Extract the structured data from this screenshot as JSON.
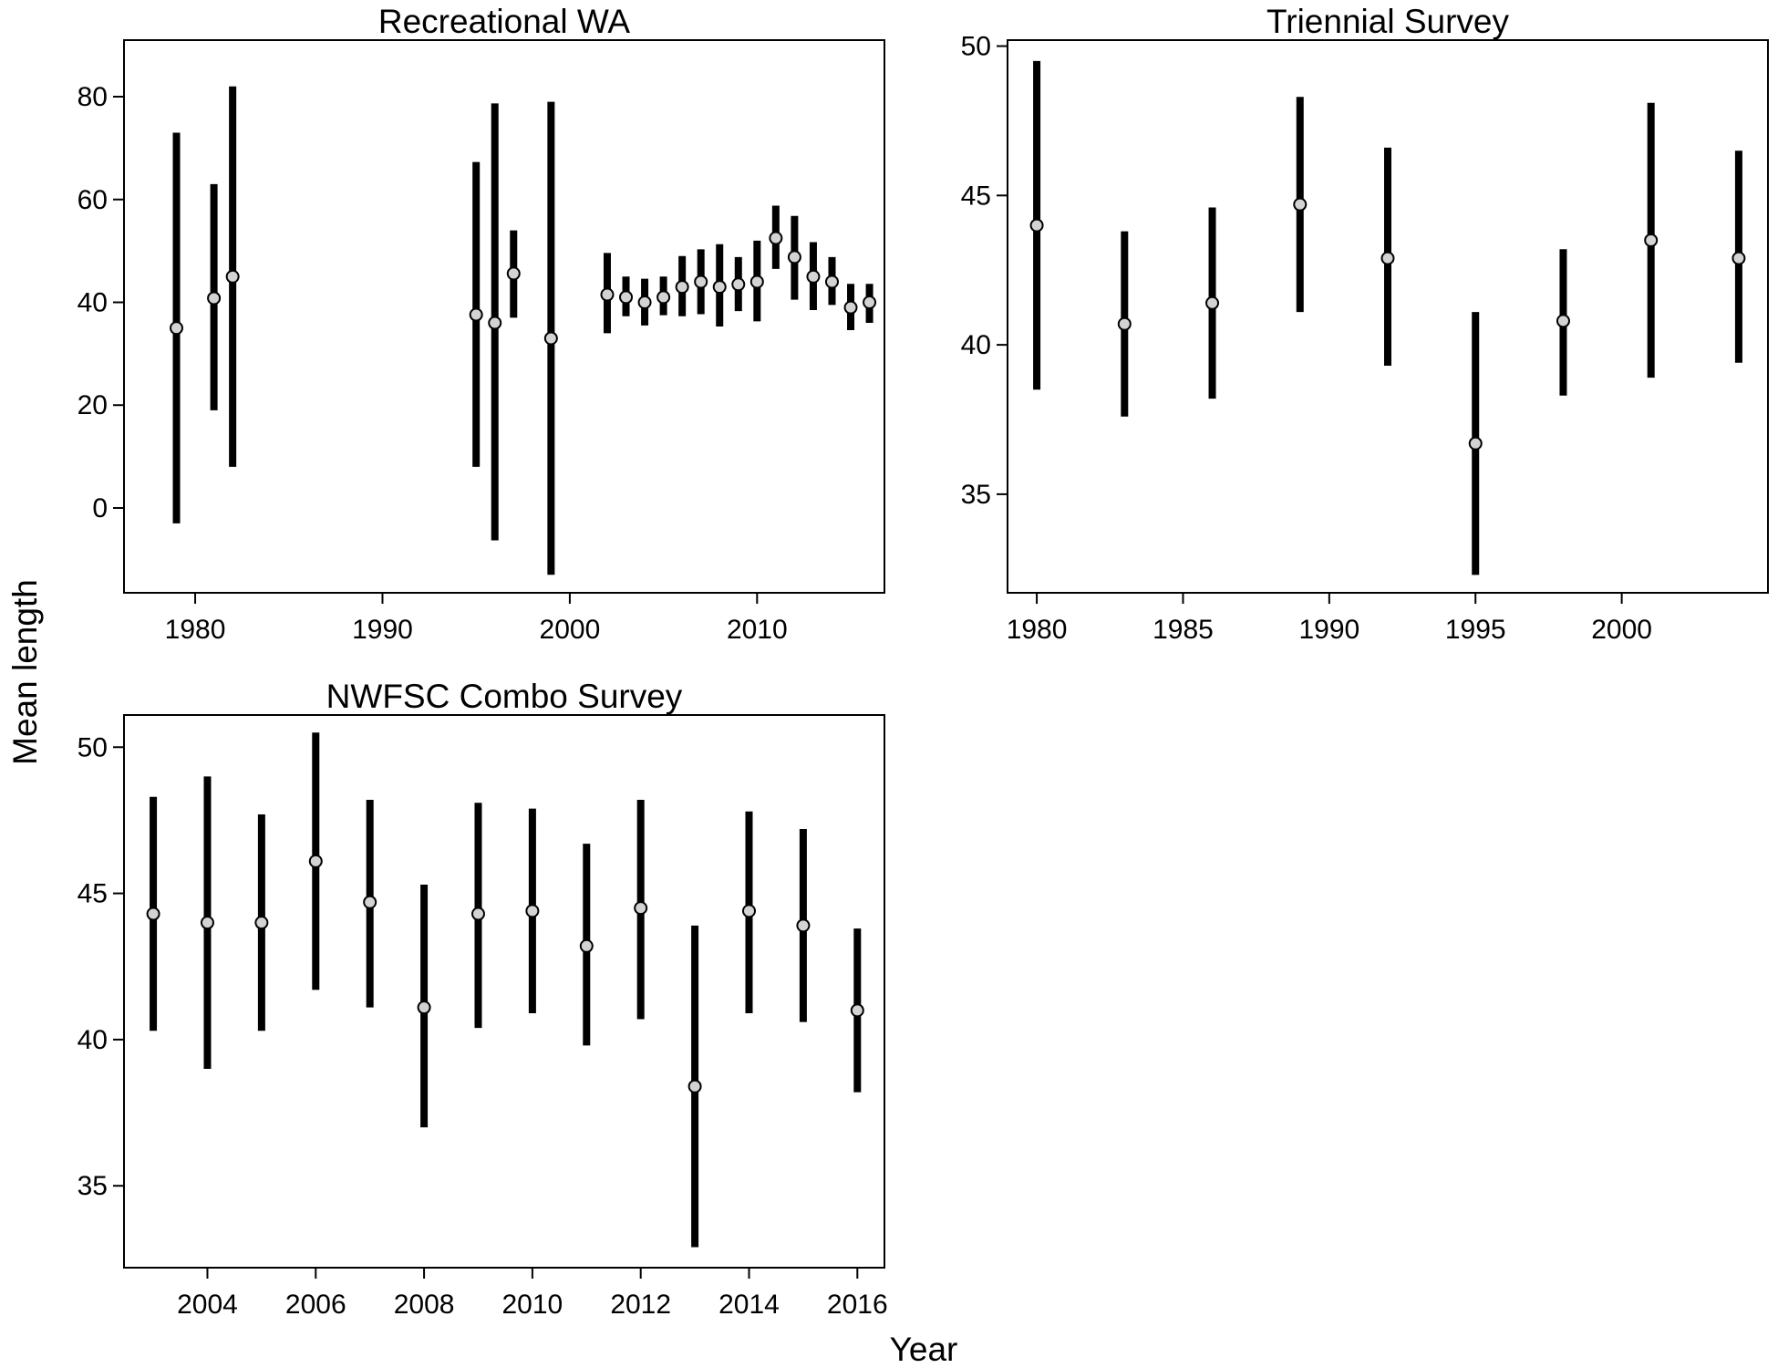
{
  "figure": {
    "xlabel": "Year",
    "ylabel": "Mean length"
  },
  "chart_data": [
    {
      "type": "errorbar",
      "title": "Recreational WA",
      "xlim": [
        1976.2,
        2016.8
      ],
      "ylim": [
        -16.5,
        91
      ],
      "xticks": [
        1980,
        1990,
        2000,
        2010
      ],
      "yticks": [
        0,
        20,
        40,
        60,
        80
      ],
      "points": [
        {
          "x": 1979,
          "y": 35,
          "lo": -3,
          "hi": 73
        },
        {
          "x": 1981,
          "y": 40.8,
          "lo": 19,
          "hi": 63
        },
        {
          "x": 1982,
          "y": 45,
          "lo": 8,
          "hi": 82
        },
        {
          "x": 1995,
          "y": 37.6,
          "lo": 8,
          "hi": 67.3
        },
        {
          "x": 1996,
          "y": 36,
          "lo": -6.3,
          "hi": 78.7
        },
        {
          "x": 1997,
          "y": 45.6,
          "lo": 37,
          "hi": 54
        },
        {
          "x": 1999,
          "y": 33,
          "lo": -13,
          "hi": 79
        },
        {
          "x": 2002,
          "y": 41.5,
          "lo": 34,
          "hi": 49.6
        },
        {
          "x": 2003,
          "y": 41,
          "lo": 37.3,
          "hi": 45
        },
        {
          "x": 2004,
          "y": 40,
          "lo": 35.5,
          "hi": 44.6
        },
        {
          "x": 2005,
          "y": 41,
          "lo": 37.5,
          "hi": 45
        },
        {
          "x": 2006,
          "y": 43,
          "lo": 37.3,
          "hi": 49
        },
        {
          "x": 2007,
          "y": 44,
          "lo": 37.7,
          "hi": 50.3
        },
        {
          "x": 2008,
          "y": 43,
          "lo": 35.3,
          "hi": 51.3
        },
        {
          "x": 2009,
          "y": 43.5,
          "lo": 38.3,
          "hi": 48.8
        },
        {
          "x": 2010,
          "y": 44,
          "lo": 36.3,
          "hi": 52
        },
        {
          "x": 2011,
          "y": 52.5,
          "lo": 46.5,
          "hi": 58.8
        },
        {
          "x": 2012,
          "y": 48.8,
          "lo": 40.5,
          "hi": 56.8
        },
        {
          "x": 2013,
          "y": 45,
          "lo": 38.5,
          "hi": 51.7
        },
        {
          "x": 2014,
          "y": 44,
          "lo": 39.5,
          "hi": 48.8
        },
        {
          "x": 2015,
          "y": 39,
          "lo": 34.6,
          "hi": 43.6
        },
        {
          "x": 2016,
          "y": 40,
          "lo": 36,
          "hi": 43.6
        }
      ]
    },
    {
      "type": "errorbar",
      "title": "Triennial Survey",
      "xlim": [
        1979,
        2005
      ],
      "ylim": [
        31.7,
        50.2
      ],
      "xticks": [
        1980,
        1985,
        1990,
        1995,
        2000
      ],
      "yticks": [
        35,
        40,
        45,
        50
      ],
      "points": [
        {
          "x": 1980,
          "y": 44,
          "lo": 38.5,
          "hi": 49.5
        },
        {
          "x": 1983,
          "y": 40.7,
          "lo": 37.6,
          "hi": 43.8
        },
        {
          "x": 1986,
          "y": 41.4,
          "lo": 38.2,
          "hi": 44.6
        },
        {
          "x": 1989,
          "y": 44.7,
          "lo": 41.1,
          "hi": 48.3
        },
        {
          "x": 1992,
          "y": 42.9,
          "lo": 39.3,
          "hi": 46.6
        },
        {
          "x": 1995,
          "y": 36.7,
          "lo": 32.3,
          "hi": 41.1
        },
        {
          "x": 1998,
          "y": 40.8,
          "lo": 38.3,
          "hi": 43.2
        },
        {
          "x": 2001,
          "y": 43.5,
          "lo": 38.9,
          "hi": 48.1
        },
        {
          "x": 2004,
          "y": 42.9,
          "lo": 39.4,
          "hi": 46.5
        }
      ]
    },
    {
      "type": "errorbar",
      "title": "NWFSC Combo Survey",
      "xlim": [
        2002.46,
        2016.5
      ],
      "ylim": [
        32.2,
        51.1
      ],
      "xticks": [
        2004,
        2006,
        2008,
        2010,
        2012,
        2014,
        2016
      ],
      "yticks": [
        35,
        40,
        45,
        50
      ],
      "points": [
        {
          "x": 2003,
          "y": 44.3,
          "lo": 40.3,
          "hi": 48.3
        },
        {
          "x": 2004,
          "y": 44,
          "lo": 39,
          "hi": 49
        },
        {
          "x": 2005,
          "y": 44,
          "lo": 40.3,
          "hi": 47.7
        },
        {
          "x": 2006,
          "y": 46.1,
          "lo": 41.7,
          "hi": 50.5
        },
        {
          "x": 2007,
          "y": 44.7,
          "lo": 41.1,
          "hi": 48.2
        },
        {
          "x": 2008,
          "y": 41.1,
          "lo": 37,
          "hi": 45.3
        },
        {
          "x": 2009,
          "y": 44.3,
          "lo": 40.4,
          "hi": 48.1
        },
        {
          "x": 2010,
          "y": 44.4,
          "lo": 40.9,
          "hi": 47.9
        },
        {
          "x": 2011,
          "y": 43.2,
          "lo": 39.8,
          "hi": 46.7
        },
        {
          "x": 2012,
          "y": 44.5,
          "lo": 40.7,
          "hi": 48.2
        },
        {
          "x": 2013,
          "y": 38.4,
          "lo": 32.9,
          "hi": 43.9
        },
        {
          "x": 2014,
          "y": 44.4,
          "lo": 40.9,
          "hi": 47.8
        },
        {
          "x": 2015,
          "y": 43.9,
          "lo": 40.6,
          "hi": 47.2
        },
        {
          "x": 2016,
          "y": 41,
          "lo": 38.2,
          "hi": 43.8
        }
      ]
    }
  ]
}
